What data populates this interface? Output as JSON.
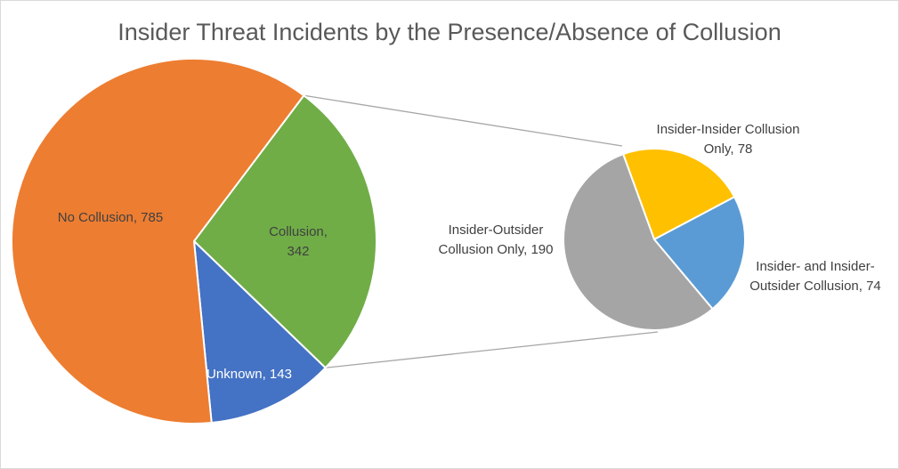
{
  "chart_data": [
    {
      "type": "pie",
      "role": "main",
      "title": "Insider Threat Incidents by the Presence/Absence of Collusion",
      "slices": [
        {
          "label": "Collusion",
          "value": 342,
          "color": "#70ad47"
        },
        {
          "label": "Unknown",
          "value": 143,
          "color": "#4472c4"
        },
        {
          "label": "No Collusion",
          "value": 785,
          "color": "#ed7d31"
        }
      ],
      "exploded_slice": "Collusion"
    },
    {
      "type": "pie",
      "role": "breakdown",
      "of": "Collusion",
      "slices": [
        {
          "label": "Insider-Insider Collusion Only",
          "value": 78,
          "color": "#ffc000"
        },
        {
          "label": "Insider- and Insider-Outsider Collusion",
          "value": 74,
          "color": "#5b9bd5"
        },
        {
          "label": "Insider-Outsider Collusion Only",
          "value": 190,
          "color": "#a5a5a5"
        }
      ]
    }
  ],
  "labels": {
    "collusion": [
      "Collusion,",
      "342"
    ],
    "unknown": [
      "Unknown, 143"
    ],
    "no_collusion": [
      "No Collusion, 785"
    ],
    "ii_only": [
      "Insider-Insider Collusion",
      "Only, 78"
    ],
    "ii_and_io": [
      "Insider- and Insider-",
      "Outsider Collusion, 74"
    ],
    "io_only": [
      "Insider-Outsider",
      "Collusion Only, 190"
    ]
  }
}
